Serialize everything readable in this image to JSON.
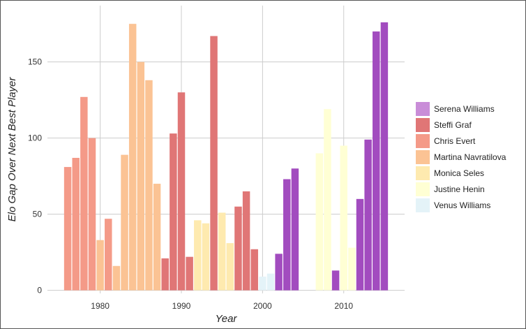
{
  "chart_data": {
    "type": "bar",
    "xlabel": "Year",
    "ylabel": "Elo Gap Over Next Best Player",
    "xlim": [
      1973.5,
      2017.5
    ],
    "ylim": [
      -2,
      187
    ],
    "x_ticks": [
      1980,
      1990,
      2000,
      2010
    ],
    "y_ticks": [
      0,
      50,
      100,
      150
    ],
    "grid": true,
    "legend_position": "right",
    "series": [
      {
        "name": "Serena Williams",
        "color": "#a24cbf",
        "points": [
          [
            2002,
            24
          ],
          [
            2003,
            73
          ],
          [
            2004,
            80
          ],
          [
            2009,
            13
          ],
          [
            2012,
            60
          ],
          [
            2013,
            99
          ],
          [
            2014,
            170
          ],
          [
            2015,
            176
          ]
        ]
      },
      {
        "name": "Steffi Graf",
        "color": "#e07676",
        "points": [
          [
            1988,
            21
          ],
          [
            1989,
            103
          ],
          [
            1990,
            130
          ],
          [
            1991,
            22
          ],
          [
            1994,
            167
          ],
          [
            1997,
            55
          ],
          [
            1998,
            65
          ],
          [
            1999,
            27
          ]
        ]
      },
      {
        "name": "Chris Evert",
        "color": "#f49a88",
        "points": [
          [
            1976,
            81
          ],
          [
            1977,
            87
          ],
          [
            1978,
            127
          ],
          [
            1979,
            100
          ],
          [
            1981,
            47
          ]
        ]
      },
      {
        "name": "Martina Navratilova",
        "color": "#fbc394",
        "points": [
          [
            1980,
            33
          ],
          [
            1982,
            16
          ],
          [
            1983,
            89
          ],
          [
            1984,
            175
          ],
          [
            1985,
            150
          ],
          [
            1986,
            138
          ],
          [
            1987,
            70
          ]
        ]
      },
      {
        "name": "Monica Seles",
        "color": "#feeaaf",
        "points": [
          [
            1992,
            46
          ],
          [
            1993,
            44
          ],
          [
            1995,
            51
          ],
          [
            1996,
            31
          ]
        ]
      },
      {
        "name": "Justine Henin",
        "color": "#ffffd4",
        "points": [
          [
            2007,
            90
          ],
          [
            2008,
            119
          ],
          [
            2010,
            95
          ],
          [
            2011,
            28
          ]
        ]
      },
      {
        "name": "Venus Williams",
        "color": "#e4f3f8",
        "points": [
          [
            2000,
            9
          ],
          [
            2001,
            11
          ]
        ]
      }
    ]
  },
  "legend": {
    "items": [
      {
        "label": "Serena Williams",
        "color": "#c98dd8"
      },
      {
        "label": "Steffi Graf",
        "color": "#e07676"
      },
      {
        "label": "Chris Evert",
        "color": "#f49a88"
      },
      {
        "label": "Martina Navratilova",
        "color": "#fbc394"
      },
      {
        "label": "Monica Seles",
        "color": "#feeaaf"
      },
      {
        "label": "Justine Henin",
        "color": "#ffffd4"
      },
      {
        "label": "Venus Williams",
        "color": "#e4f3f8"
      }
    ]
  }
}
